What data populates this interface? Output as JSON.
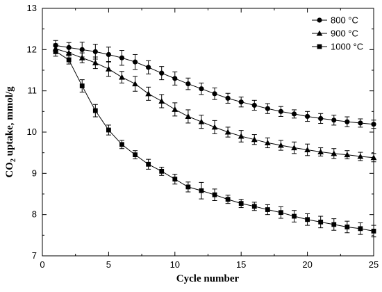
{
  "chart_data": {
    "type": "line",
    "xlabel": "Cycle number",
    "ylabel_main": "CO",
    "ylabel_sub": "2",
    "ylabel_rest": " uptake, mmol/g",
    "xlim": [
      0,
      25
    ],
    "ylim": [
      7,
      13
    ],
    "xticks": [
      0,
      5,
      10,
      15,
      20,
      25
    ],
    "yticks": [
      7,
      8,
      9,
      10,
      11,
      12,
      13
    ],
    "grid": false,
    "legend_position": "top-right",
    "x": [
      1,
      2,
      3,
      4,
      5,
      6,
      7,
      8,
      9,
      10,
      11,
      12,
      13,
      14,
      15,
      16,
      17,
      18,
      19,
      20,
      21,
      22,
      23,
      24,
      25
    ],
    "series": [
      {
        "name": "800 °C",
        "marker": "circle",
        "values": [
          12.1,
          12.05,
          12.0,
          11.95,
          11.88,
          11.8,
          11.7,
          11.57,
          11.43,
          11.3,
          11.17,
          11.05,
          10.93,
          10.82,
          10.73,
          10.65,
          10.57,
          10.5,
          10.44,
          10.38,
          10.33,
          10.29,
          10.25,
          10.22,
          10.19
        ],
        "errors": [
          0.12,
          0.12,
          0.18,
          0.18,
          0.18,
          0.18,
          0.18,
          0.16,
          0.16,
          0.16,
          0.14,
          0.14,
          0.14,
          0.12,
          0.12,
          0.12,
          0.12,
          0.12,
          0.1,
          0.12,
          0.12,
          0.12,
          0.12,
          0.1,
          0.1
        ]
      },
      {
        "name": "900 °C",
        "marker": "triangle",
        "values": [
          12.02,
          11.92,
          11.8,
          11.68,
          11.53,
          11.33,
          11.17,
          10.93,
          10.75,
          10.55,
          10.38,
          10.25,
          10.12,
          10.0,
          9.9,
          9.82,
          9.74,
          9.68,
          9.62,
          9.57,
          9.52,
          9.48,
          9.45,
          9.41,
          9.38
        ],
        "errors": [
          0.12,
          0.12,
          0.12,
          0.14,
          0.18,
          0.14,
          0.18,
          0.16,
          0.16,
          0.16,
          0.16,
          0.16,
          0.16,
          0.12,
          0.14,
          0.12,
          0.12,
          0.12,
          0.14,
          0.14,
          0.1,
          0.12,
          0.1,
          0.1,
          0.1
        ]
      },
      {
        "name": "1000 °C",
        "marker": "square",
        "values": [
          11.96,
          11.75,
          11.12,
          10.52,
          10.05,
          9.7,
          9.45,
          9.22,
          9.05,
          8.86,
          8.67,
          8.58,
          8.48,
          8.37,
          8.27,
          8.2,
          8.12,
          8.05,
          7.96,
          7.88,
          7.82,
          7.76,
          7.7,
          7.66,
          7.6
        ],
        "errors": [
          0.12,
          0.1,
          0.15,
          0.15,
          0.12,
          0.1,
          0.1,
          0.12,
          0.1,
          0.12,
          0.12,
          0.2,
          0.14,
          0.1,
          0.1,
          0.1,
          0.12,
          0.14,
          0.14,
          0.14,
          0.14,
          0.14,
          0.14,
          0.14,
          0.14
        ]
      }
    ]
  }
}
